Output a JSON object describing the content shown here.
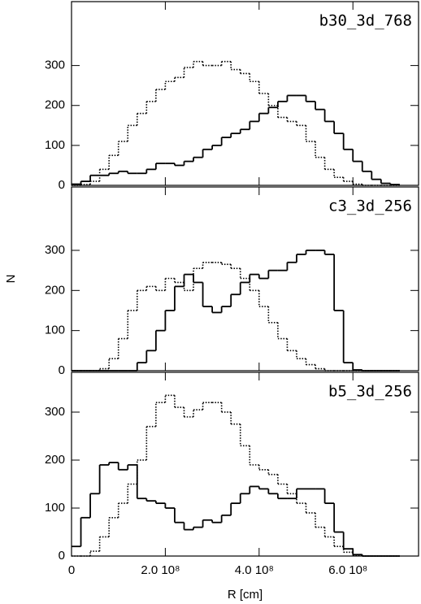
{
  "chart_data": [
    {
      "type": "histogram",
      "title": "b30_3d_768",
      "bins": [
        0,
        20000000,
        40000000,
        60000000,
        80000000,
        100000000,
        120000000,
        140000000,
        160000000,
        180000000,
        200000000,
        220000000,
        240000000,
        260000000,
        280000000,
        300000000,
        320000000,
        340000000,
        360000000,
        380000000,
        400000000,
        420000000,
        440000000,
        460000000,
        480000000,
        500000000,
        520000000,
        540000000,
        560000000,
        580000000,
        600000000,
        620000000,
        640000000,
        660000000,
        680000000,
        700000000
      ],
      "series": [
        {
          "color": "#000000",
          "linestyle": "solid",
          "values": [
            3,
            10,
            25,
            25,
            30,
            35,
            30,
            30,
            40,
            55,
            55,
            50,
            60,
            70,
            90,
            100,
            120,
            130,
            140,
            160,
            180,
            195,
            210,
            225,
            225,
            210,
            190,
            160,
            130,
            90,
            60,
            35,
            15,
            5,
            2
          ]
        },
        {
          "color": "#000000",
          "linestyle": "dotted",
          "values": [
            0,
            2,
            10,
            40,
            75,
            110,
            150,
            180,
            210,
            240,
            260,
            270,
            295,
            310,
            300,
            300,
            310,
            290,
            280,
            260,
            230,
            200,
            170,
            160,
            150,
            110,
            70,
            40,
            20,
            10,
            3,
            0,
            0,
            0,
            0
          ]
        }
      ],
      "xlim": [
        0,
        740000000
      ],
      "ylim": [
        0,
        460
      ],
      "yticks": [
        0,
        100,
        200,
        300
      ]
    },
    {
      "type": "histogram",
      "title": "c3_3d_256",
      "ylabel": "N",
      "bins": [
        0,
        20000000,
        40000000,
        60000000,
        80000000,
        100000000,
        120000000,
        140000000,
        160000000,
        180000000,
        200000000,
        220000000,
        240000000,
        260000000,
        280000000,
        300000000,
        320000000,
        340000000,
        360000000,
        380000000,
        400000000,
        420000000,
        440000000,
        460000000,
        480000000,
        500000000,
        520000000,
        540000000,
        560000000,
        580000000,
        600000000,
        620000000,
        640000000,
        660000000,
        680000000,
        700000000
      ],
      "series": [
        {
          "color": "#000000",
          "linestyle": "solid",
          "values": [
            0,
            0,
            0,
            0,
            0,
            0,
            0,
            20,
            50,
            100,
            150,
            210,
            240,
            220,
            160,
            145,
            160,
            190,
            220,
            240,
            230,
            250,
            250,
            270,
            290,
            300,
            300,
            290,
            150,
            20,
            2,
            0,
            0,
            0,
            0
          ]
        },
        {
          "color": "#000000",
          "linestyle": "dotted",
          "values": [
            0,
            0,
            0,
            5,
            30,
            80,
            150,
            200,
            210,
            200,
            230,
            220,
            200,
            255,
            270,
            270,
            265,
            255,
            230,
            200,
            160,
            120,
            80,
            50,
            30,
            15,
            5,
            0,
            0,
            0,
            0,
            0,
            0,
            0,
            0
          ]
        }
      ],
      "xlim": [
        0,
        740000000
      ],
      "ylim": [
        0,
        458
      ],
      "yticks": [
        0,
        100,
        200,
        300
      ]
    },
    {
      "type": "histogram",
      "title": "b5_3d_256",
      "xlabel": "R [cm]",
      "bins": [
        0,
        20000000,
        40000000,
        60000000,
        80000000,
        100000000,
        120000000,
        140000000,
        160000000,
        180000000,
        200000000,
        220000000,
        240000000,
        260000000,
        280000000,
        300000000,
        320000000,
        340000000,
        360000000,
        380000000,
        400000000,
        420000000,
        440000000,
        460000000,
        480000000,
        500000000,
        520000000,
        540000000,
        560000000,
        580000000,
        600000000,
        620000000,
        640000000,
        660000000,
        680000000,
        700000000
      ],
      "series": [
        {
          "color": "#000000",
          "linestyle": "solid",
          "values": [
            20,
            80,
            130,
            190,
            195,
            180,
            190,
            120,
            115,
            110,
            100,
            70,
            55,
            60,
            75,
            70,
            85,
            110,
            130,
            145,
            140,
            130,
            120,
            120,
            140,
            140,
            140,
            110,
            50,
            15,
            3,
            0,
            0,
            0,
            0
          ]
        },
        {
          "color": "#000000",
          "linestyle": "dotted",
          "values": [
            0,
            0,
            10,
            40,
            80,
            110,
            150,
            200,
            270,
            320,
            335,
            310,
            290,
            305,
            320,
            320,
            300,
            275,
            230,
            190,
            180,
            170,
            150,
            130,
            110,
            90,
            60,
            40,
            20,
            8,
            2,
            0,
            0,
            0,
            0
          ]
        }
      ],
      "xlim": [
        0,
        740000000
      ],
      "ylim": [
        0,
        383
      ],
      "yticks": [
        0,
        100,
        200,
        300
      ],
      "xticks": [
        0,
        {
          "value": 200000000,
          "label": "2.0 10⁸"
        },
        {
          "value": 400000000,
          "label": "4.0 10⁸"
        },
        {
          "value": 600000000,
          "label": "6.0 10⁸"
        }
      ]
    }
  ]
}
